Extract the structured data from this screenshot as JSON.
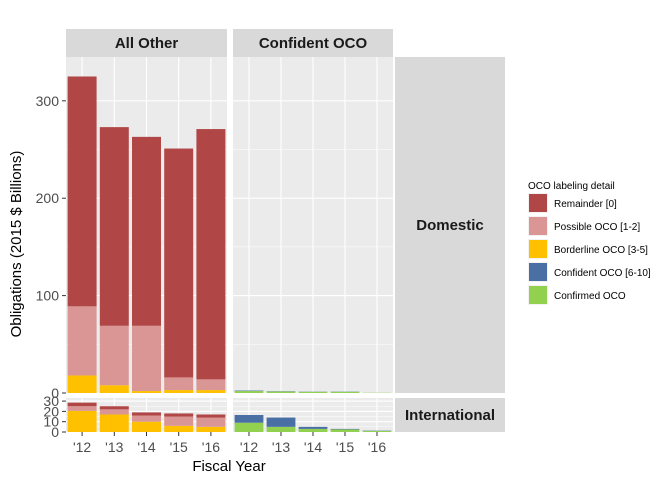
{
  "chart_data": {
    "type": "bar",
    "stacked": true,
    "facets": {
      "columns": [
        "All Other",
        "Confident OCO"
      ],
      "rows": [
        "Domestic",
        "International"
      ]
    },
    "categories": [
      "'12",
      "'13",
      "'14",
      "'15",
      "'16"
    ],
    "xlabel": "Fiscal Year",
    "ylabel": "Obligations (2015 $ Billions)",
    "y_ticks": {
      "Domestic": [
        0,
        100,
        200,
        300
      ],
      "International": [
        0,
        10,
        20,
        30
      ]
    },
    "ylim": {
      "Domestic": [
        0,
        345
      ],
      "International": [
        0,
        33
      ]
    },
    "legend": {
      "title": "OCO labeling detail",
      "position": "right",
      "items": [
        {
          "key": "remainder",
          "label": "Remainder [0]",
          "color": "#B04646"
        },
        {
          "key": "possible",
          "label": "Possible OCO [1-2]",
          "color": "#D99694"
        },
        {
          "key": "borderline",
          "label": "Borderline OCO [3-5]",
          "color": "#FFC000"
        },
        {
          "key": "confident",
          "label": "Confident OCO [6-10]",
          "color": "#4A6FA5"
        },
        {
          "key": "confirmed",
          "label": "Confirmed OCO",
          "color": "#92D050"
        }
      ]
    },
    "panels": [
      {
        "column": "All Other",
        "row": "Domestic",
        "bars": [
          {
            "remainder": 236,
            "possible": 71,
            "borderline": 18,
            "confident": 0,
            "confirmed": 0
          },
          {
            "remainder": 204,
            "possible": 61,
            "borderline": 8,
            "confident": 0,
            "confirmed": 0
          },
          {
            "remainder": 194,
            "possible": 67,
            "borderline": 2,
            "confident": 0,
            "confirmed": 0
          },
          {
            "remainder": 235,
            "possible": 13,
            "borderline": 3,
            "confident": 0,
            "confirmed": 0
          },
          {
            "remainder": 257,
            "possible": 11,
            "borderline": 3,
            "confident": 0,
            "confirmed": 0
          }
        ]
      },
      {
        "column": "Confident OCO",
        "row": "Domestic",
        "bars": [
          {
            "remainder": 0,
            "possible": 0,
            "borderline": 0,
            "confident": 0.5,
            "confirmed": 2
          },
          {
            "remainder": 0,
            "possible": 0,
            "borderline": 0,
            "confident": 0.3,
            "confirmed": 1.5
          },
          {
            "remainder": 0,
            "possible": 0,
            "borderline": 0,
            "confident": 0.2,
            "confirmed": 1.2
          },
          {
            "remainder": 0,
            "possible": 0,
            "borderline": 0,
            "confident": 0.2,
            "confirmed": 1.3
          },
          {
            "remainder": 0,
            "possible": 0,
            "borderline": 0,
            "confident": 0,
            "confirmed": 0.3
          }
        ]
      },
      {
        "column": "All Other",
        "row": "International",
        "bars": [
          {
            "remainder": 3.5,
            "possible": 4.5,
            "borderline": 20.5,
            "confident": 0,
            "confirmed": 0
          },
          {
            "remainder": 3,
            "possible": 5,
            "borderline": 17,
            "confident": 0,
            "confirmed": 0
          },
          {
            "remainder": 3,
            "possible": 6,
            "borderline": 10,
            "confident": 0,
            "confirmed": 0
          },
          {
            "remainder": 3,
            "possible": 9,
            "borderline": 6,
            "confident": 0,
            "confirmed": 0
          },
          {
            "remainder": 3,
            "possible": 9,
            "borderline": 5,
            "confident": 0,
            "confirmed": 0
          }
        ]
      },
      {
        "column": "Confident OCO",
        "row": "International",
        "bars": [
          {
            "remainder": 0,
            "possible": 0,
            "borderline": 0,
            "confident": 7.5,
            "confirmed": 9
          },
          {
            "remainder": 0,
            "possible": 0,
            "borderline": 0,
            "confident": 9,
            "confirmed": 5
          },
          {
            "remainder": 0,
            "possible": 0,
            "borderline": 0,
            "confident": 2,
            "confirmed": 3
          },
          {
            "remainder": 0,
            "possible": 0,
            "borderline": 0,
            "confident": 0.5,
            "confirmed": 2.5
          },
          {
            "remainder": 0,
            "possible": 0,
            "borderline": 0,
            "confident": 0.3,
            "confirmed": 1
          }
        ]
      }
    ],
    "grid": true,
    "panel_background": "#EBEBEB",
    "strip_background": "#D9D9D9"
  }
}
